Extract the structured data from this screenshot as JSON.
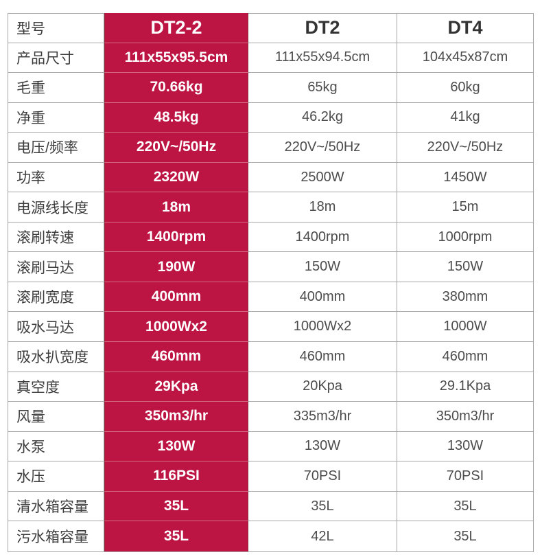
{
  "table": {
    "corner_label": "型号",
    "columns": [
      "DT2-2",
      "DT2",
      "DT4"
    ],
    "rows": [
      {
        "label": "产品尺寸",
        "values": [
          "111x55x95.5cm",
          "111x55x94.5cm",
          "104x45x87cm"
        ]
      },
      {
        "label": "毛重",
        "values": [
          "70.66kg",
          "65kg",
          "60kg"
        ]
      },
      {
        "label": "净重",
        "values": [
          "48.5kg",
          "46.2kg",
          "41kg"
        ]
      },
      {
        "label": "电压/频率",
        "values": [
          "220V~/50Hz",
          "220V~/50Hz",
          "220V~/50Hz"
        ]
      },
      {
        "label": "功率",
        "values": [
          "2320W",
          "2500W",
          "1450W"
        ]
      },
      {
        "label": "电源线长度",
        "values": [
          "18m",
          "18m",
          "15m"
        ]
      },
      {
        "label": "滚刷转速",
        "values": [
          "1400rpm",
          "1400rpm",
          "1000rpm"
        ]
      },
      {
        "label": "滚刷马达",
        "values": [
          "190W",
          "150W",
          "150W"
        ]
      },
      {
        "label": "滚刷宽度",
        "values": [
          "400mm",
          "400mm",
          "380mm"
        ]
      },
      {
        "label": "吸水马达",
        "values": [
          "1000Wx2",
          "1000Wx2",
          "1000W"
        ]
      },
      {
        "label": "吸水扒宽度",
        "values": [
          "460mm",
          "460mm",
          "460mm"
        ]
      },
      {
        "label": "真空度",
        "values": [
          "29Kpa",
          "20Kpa",
          "29.1Kpa"
        ]
      },
      {
        "label": "风量",
        "values": [
          "350m3/hr",
          "335m3/hr",
          "350m3/hr"
        ]
      },
      {
        "label": "水泵",
        "values": [
          "130W",
          "130W",
          "130W"
        ]
      },
      {
        "label": "水压",
        "values": [
          "116PSI",
          "70PSI",
          "70PSI"
        ]
      },
      {
        "label": "清水箱容量",
        "values": [
          "35L",
          "35L",
          "35L"
        ]
      },
      {
        "label": "污水箱容量",
        "values": [
          "35L",
          "42L",
          "35L"
        ]
      }
    ],
    "colors": {
      "highlight": "#BD1543",
      "highlight_divider": "#D56E82",
      "highlight_edge": "#8A2A3C",
      "border": "#A6A6A6",
      "label_text": "#3D3D3D",
      "value_text": "#4C4C4C",
      "header_text": "#333333",
      "highlight_text": "#FFFFFF"
    }
  }
}
